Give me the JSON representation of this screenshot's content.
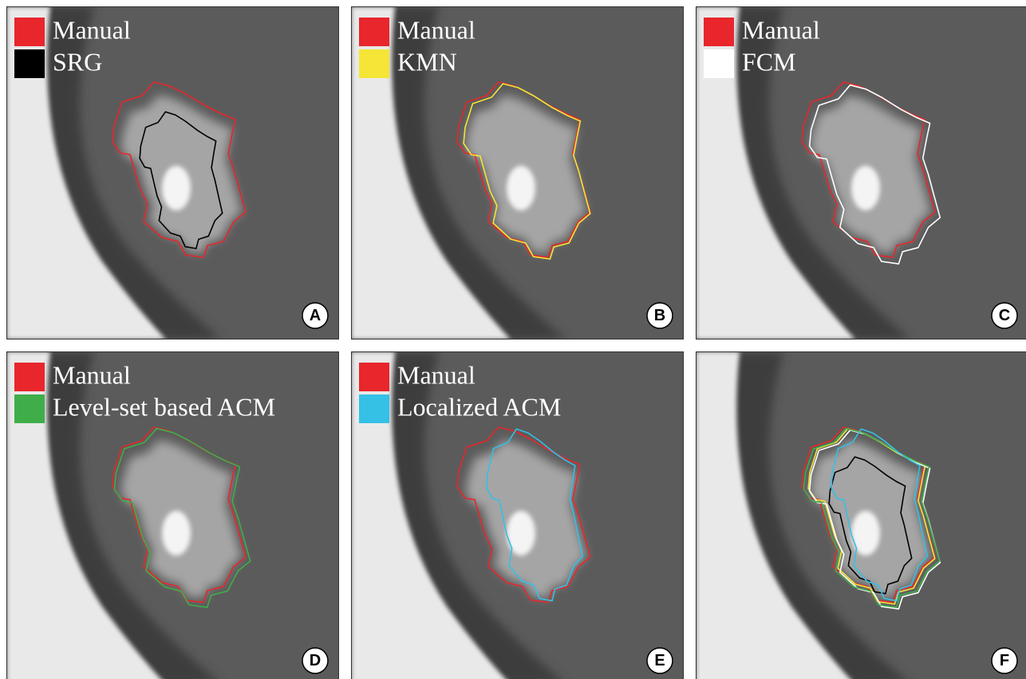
{
  "panels": [
    {
      "label": "A",
      "legend": [
        {
          "name": "Manual",
          "color": "#e8262b"
        },
        {
          "name": "SRG",
          "color": "#000000"
        }
      ]
    },
    {
      "label": "B",
      "legend": [
        {
          "name": "Manual",
          "color": "#e8262b"
        },
        {
          "name": "KMN",
          "color": "#f5e536"
        }
      ]
    },
    {
      "label": "C",
      "legend": [
        {
          "name": "Manual",
          "color": "#e8262b"
        },
        {
          "name": "FCM",
          "color": "#ffffff"
        }
      ]
    },
    {
      "label": "D",
      "legend": [
        {
          "name": "Manual",
          "color": "#e8262b"
        },
        {
          "name": "Level-set based ACM",
          "color": "#3fae49"
        }
      ]
    },
    {
      "label": "E",
      "legend": [
        {
          "name": "Manual",
          "color": "#e8262b"
        },
        {
          "name": "Localized ACM",
          "color": "#35c0e6"
        }
      ]
    },
    {
      "label": "F"
    }
  ]
}
